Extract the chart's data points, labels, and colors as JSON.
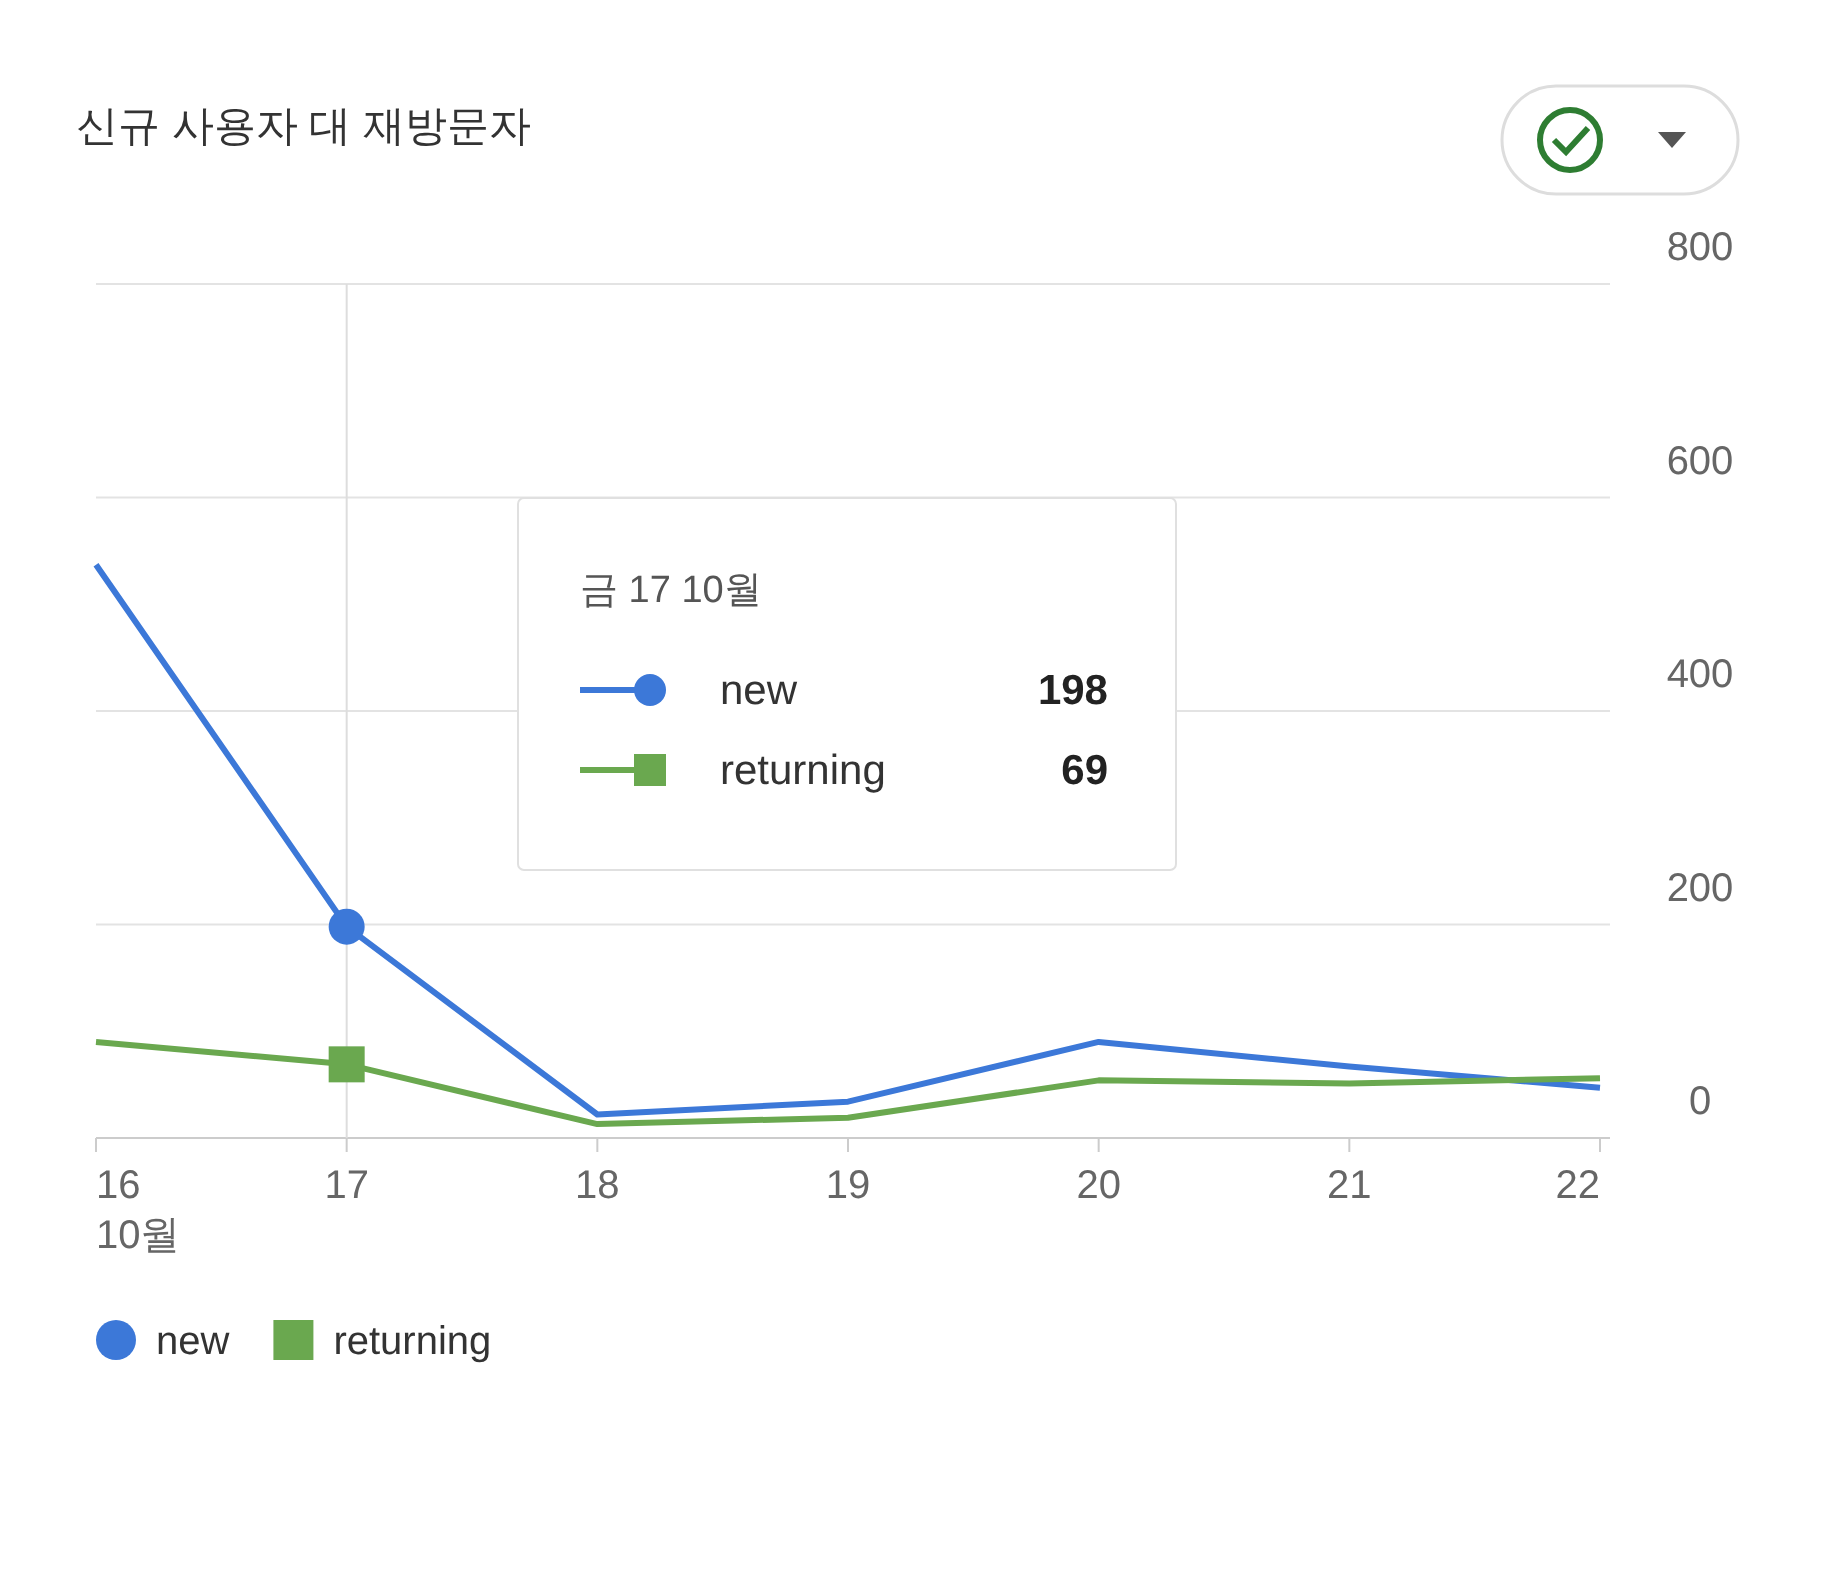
{
  "chart_data": {
    "type": "line",
    "title": "신규 사용자 대 재방문자",
    "categories": [
      "16",
      "17",
      "18",
      "19",
      "20",
      "21",
      "22"
    ],
    "series": [
      {
        "name": "new",
        "color": "#3c78d8",
        "values": [
          537,
          198,
          22,
          34,
          90,
          67,
          47
        ]
      },
      {
        "name": "returning",
        "color": "#6aa84f",
        "values": [
          90,
          69,
          13,
          19,
          54,
          51,
          56
        ]
      }
    ],
    "ylim": [
      0,
      800
    ],
    "yticks": [
      0,
      200,
      400,
      600,
      800
    ],
    "grid": "y",
    "legend": "bottom left",
    "ref_lines": [
      {
        "axis": "x",
        "value": "17",
        "color": "#dddddd"
      }
    ],
    "annotations": [
      "10월",
      "금 17 10월",
      "198",
      "69"
    ]
  }
}
